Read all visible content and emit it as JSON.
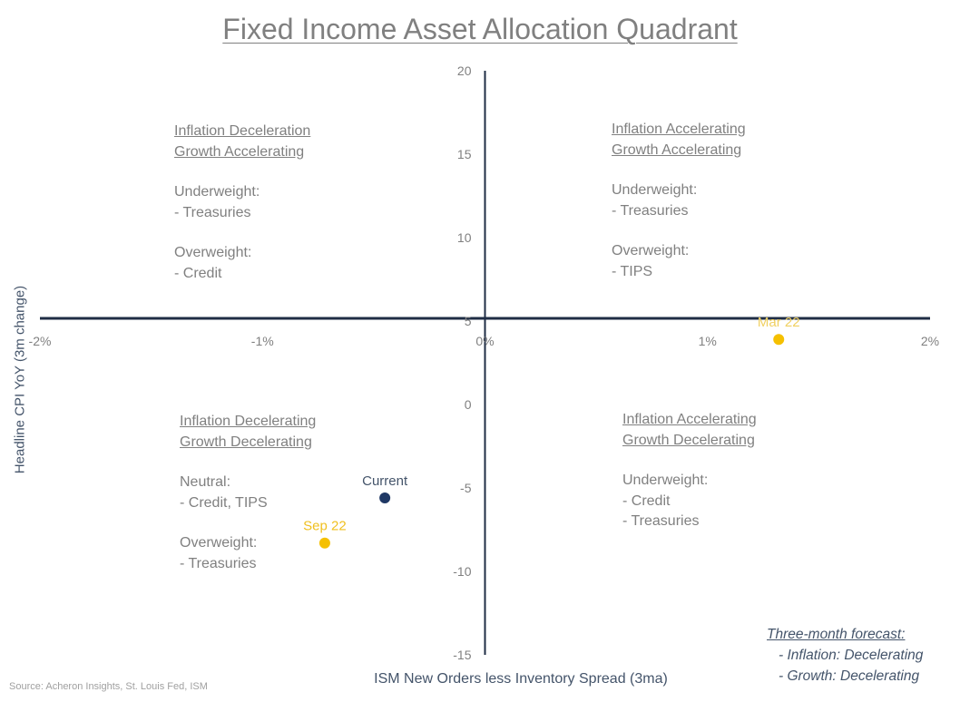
{
  "chart_data": {
    "type": "scatter",
    "title": "Fixed Income Asset Allocation Quadrant",
    "xlabel": "ISM New Orders less Inventory Spread (3ma)",
    "ylabel": "Headline CPI YoY (3m change)",
    "xlim": [
      -2,
      2
    ],
    "ylim": [
      -15,
      20
    ],
    "x_axis_crosses_y": 5,
    "y_axis_crosses_x": 0,
    "x_ticks": [
      -2,
      -1,
      0,
      1,
      2
    ],
    "x_tick_labels": [
      "-2%",
      "-1%",
      "0%",
      "1%",
      "2%"
    ],
    "y_ticks": [
      20,
      15,
      10,
      5,
      0,
      -5,
      -10,
      -15
    ],
    "y_tick_labels": [
      "20",
      "15",
      "10",
      "5",
      "0",
      "-5",
      "-10",
      "-15"
    ],
    "grid": false,
    "points": [
      {
        "label": "Mar 22",
        "x": 1.32,
        "y": 3.9,
        "color": "#f5c000",
        "label_color": "#f0d060"
      },
      {
        "label": "Current",
        "x": -0.45,
        "y": -5.6,
        "color": "#1f3864",
        "label_color": "#44546a"
      },
      {
        "label": "Sep 22",
        "x": -0.72,
        "y": -8.3,
        "color": "#f5c000",
        "label_color": "#f0c020"
      }
    ]
  },
  "quadrants": {
    "top_left": {
      "h1": "Inflation Deceleration",
      "h2": "Growth Accelerating",
      "l1": "Underweight:",
      "l2": "- Treasuries",
      "l3": "Overweight:",
      "l4": "- Credit"
    },
    "top_right": {
      "h1": "Inflation Accelerating",
      "h2": "Growth Accelerating",
      "l1": "Underweight:",
      "l2": "- Treasuries",
      "l3": "Overweight:",
      "l4": "- TIPS"
    },
    "bottom_left": {
      "h1": "Inflation Decelerating",
      "h2": "Growth Decelerating",
      "l1": "Neutral:",
      "l2": "- Credit, TIPS",
      "l3": "Overweight:",
      "l4": "- Treasuries"
    },
    "bottom_right": {
      "h1": "Inflation Accelerating",
      "h2": "Growth Decelerating",
      "l1": "Underweight:",
      "l2": "- Credit",
      "l3": "- Treasuries"
    }
  },
  "forecast": {
    "title": "Three-month forecast:",
    "inflation": "- Inflation: Decelerating",
    "growth": "- Growth: Decelerating"
  },
  "source": "Source: Acheron Insights, St. Louis Fed, ISM",
  "colors": {
    "axis": "#1f2d45",
    "text": "#808080"
  }
}
